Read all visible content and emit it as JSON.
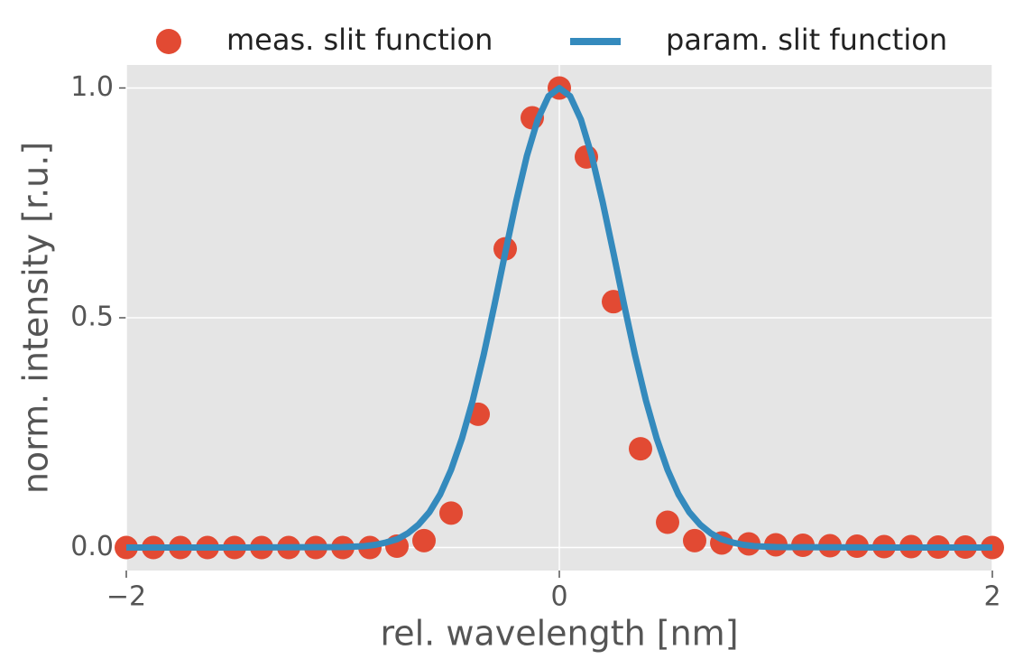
{
  "chart_data": {
    "type": "scatter-line",
    "x_label": "rel. wavelength [nm]",
    "y_label": "norm. intensity [r.u.]",
    "xlim": [
      -2,
      2
    ],
    "ylim": [
      -0.05,
      1.05
    ],
    "xticks": [
      {
        "value": -2,
        "label": "−2"
      },
      0,
      2
    ],
    "yticks": [
      {
        "value": 0,
        "label": "0.0"
      },
      0.5,
      {
        "value": 1,
        "label": "1.0"
      }
    ],
    "grid": true,
    "legend": "top",
    "series": [
      {
        "name": "meas. slit function",
        "kind": "scatter",
        "color": "#e24a33",
        "x": [
          -2,
          -1.875,
          -1.75,
          -1.625,
          -1.5,
          -1.375,
          -1.25,
          -1.125,
          -1,
          -0.875,
          -0.75,
          -0.625,
          -0.5,
          -0.375,
          -0.25,
          -0.125,
          0,
          0.125,
          0.25,
          0.375,
          0.5,
          0.625,
          0.75,
          0.875,
          1,
          1.125,
          1.25,
          1.375,
          1.5,
          1.625,
          1.75,
          1.875,
          2
        ],
        "values": [
          0,
          0,
          0,
          0,
          0,
          0,
          0,
          0,
          0,
          0,
          0.003,
          0.015,
          0.075,
          0.29,
          0.65,
          0.935,
          1.0,
          0.85,
          0.535,
          0.215,
          0.055,
          0.015,
          0.01,
          0.008,
          0.006,
          0.005,
          0.004,
          0.003,
          0.002,
          0.002,
          0.001,
          0.001,
          0
        ]
      },
      {
        "name": "param. slit function",
        "kind": "line",
        "color": "#348abd",
        "x": [
          -2,
          -1.5,
          -1,
          -0.95,
          -0.9,
          -0.85,
          -0.8,
          -0.75,
          -0.7,
          -0.65,
          -0.6,
          -0.55,
          -0.5,
          -0.45,
          -0.4,
          -0.35,
          -0.3,
          -0.25,
          -0.2,
          -0.15,
          -0.1,
          -0.05,
          0,
          0.05,
          0.1,
          0.15,
          0.2,
          0.25,
          0.3,
          0.35,
          0.4,
          0.45,
          0.5,
          0.55,
          0.6,
          0.65,
          0.7,
          0.75,
          0.8,
          0.85,
          0.9,
          0.95,
          1,
          1.5,
          2
        ],
        "values": [
          0,
          0,
          0.001,
          0.002,
          0.003,
          0.006,
          0.011,
          0.018,
          0.031,
          0.05,
          0.077,
          0.116,
          0.169,
          0.237,
          0.32,
          0.418,
          0.527,
          0.641,
          0.752,
          0.852,
          0.931,
          0.982,
          1,
          0.982,
          0.931,
          0.852,
          0.752,
          0.641,
          0.527,
          0.418,
          0.32,
          0.237,
          0.169,
          0.116,
          0.077,
          0.05,
          0.031,
          0.018,
          0.011,
          0.006,
          0.003,
          0.002,
          0.001,
          0,
          0
        ]
      }
    ]
  }
}
